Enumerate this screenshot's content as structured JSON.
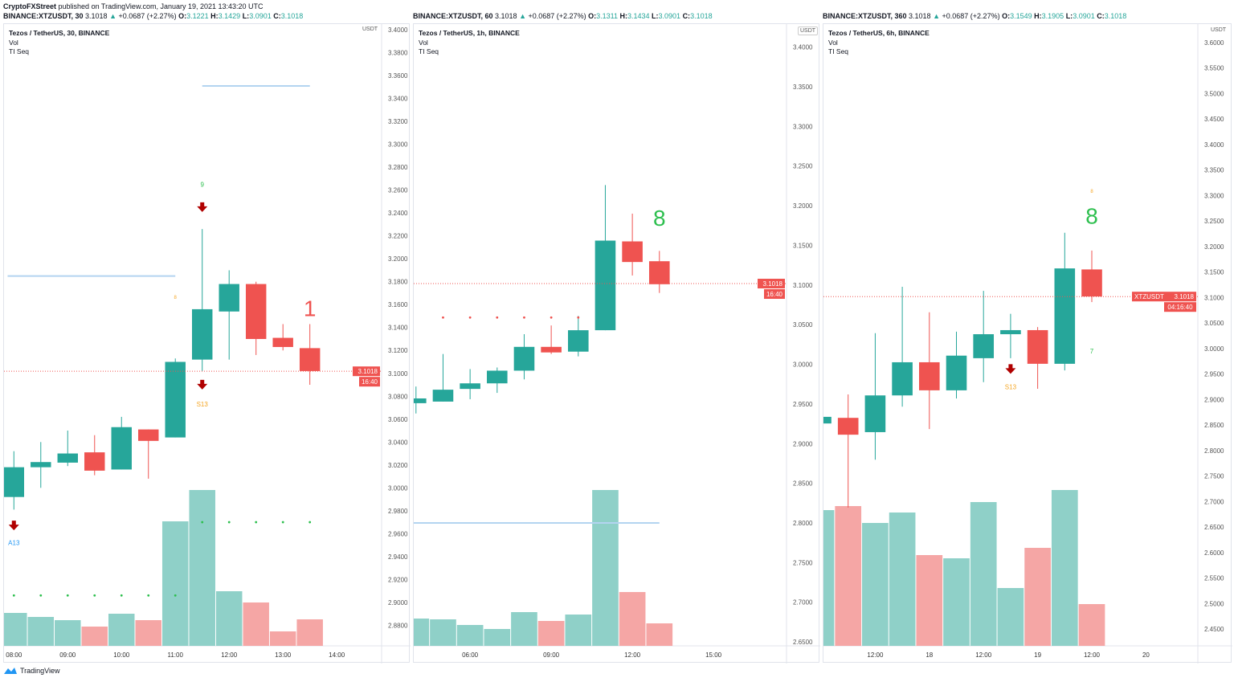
{
  "publisher": {
    "name": "CryptoFXStreet",
    "text": "published on TradingView.com, January 19, 2021 13:43:20 UTC"
  },
  "brand": "TradingView",
  "colors": {
    "up": "#26a69a",
    "down": "#ef5350",
    "vol_up": "#8fd0c8",
    "vol_down": "#f5a6a5",
    "hline": "#b3d4f0",
    "price_label": "#ef5350",
    "seq_green": "#2dbf4e",
    "seq_orange": "#f5a623",
    "arrow": "#b00000",
    "a13": "#2196f3"
  },
  "chart_data": [
    {
      "type": "candlestick",
      "header": {
        "symbol": "BINANCE:XTZUSDT, 30",
        "last": "3.1018",
        "arrow": "▲",
        "change": "+0.0687 (+2.27%)",
        "o": "3.1221",
        "h": "3.1429",
        "l": "3.0901",
        "c": "3.1018"
      },
      "title": "Tezos / TetherUS, 30, BINANCE",
      "indicators": [
        "Vol",
        "TI Seq"
      ],
      "unit": "USDT",
      "ylim": [
        2.862,
        3.405
      ],
      "xlim": [
        "07:49",
        "14:50"
      ],
      "yticks": [
        "3.4000",
        "3.3800",
        "3.3600",
        "3.3400",
        "3.3200",
        "3.3000",
        "3.2800",
        "3.2600",
        "3.2400",
        "3.2200",
        "3.2000",
        "3.1800",
        "3.1600",
        "3.1400",
        "3.1200",
        "3.1000",
        "3.0800",
        "3.0600",
        "3.0400",
        "3.0200",
        "3.0000",
        "2.9800",
        "2.9600",
        "2.9400",
        "2.9200",
        "2.9000",
        "2.8800"
      ],
      "xticks": [
        {
          "t": "08:00",
          "label": "08:00"
        },
        {
          "t": "09:00",
          "label": "09:00"
        },
        {
          "t": "10:00",
          "label": "10:00"
        },
        {
          "t": "11:00",
          "label": "11:00"
        },
        {
          "t": "12:00",
          "label": "12:00"
        },
        {
          "t": "13:00",
          "label": "13:00"
        },
        {
          "t": "14:00",
          "label": "14:00"
        }
      ],
      "candles": [
        {
          "t": "08:00",
          "o": 2.992,
          "h": 3.032,
          "l": 2.981,
          "c": 3.018,
          "v": 41
        },
        {
          "t": "08:30",
          "o": 3.018,
          "h": 3.04,
          "l": 3.0,
          "c": 3.0225,
          "v": 36
        },
        {
          "t": "09:00",
          "o": 3.022,
          "h": 3.05,
          "l": 3.019,
          "c": 3.03,
          "v": 32
        },
        {
          "t": "09:30",
          "o": 3.031,
          "h": 3.046,
          "l": 3.011,
          "c": 3.015,
          "v": 24
        },
        {
          "t": "10:00",
          "o": 3.016,
          "h": 3.062,
          "l": 3.016,
          "c": 3.053,
          "v": 40
        },
        {
          "t": "10:30",
          "o": 3.051,
          "h": 3.051,
          "l": 3.008,
          "c": 3.041,
          "v": 32
        },
        {
          "t": "11:00",
          "o": 3.044,
          "h": 3.113,
          "l": 3.044,
          "c": 3.11,
          "v": 155
        },
        {
          "t": "11:30",
          "o": 3.112,
          "h": 3.226,
          "l": 3.102,
          "c": 3.156,
          "v": 194
        },
        {
          "t": "12:00",
          "o": 3.154,
          "h": 3.19,
          "l": 3.112,
          "c": 3.178,
          "v": 68
        },
        {
          "t": "12:30",
          "o": 3.178,
          "h": 3.18,
          "l": 3.116,
          "c": 3.13,
          "v": 54
        },
        {
          "t": "13:00",
          "o": 3.131,
          "h": 3.143,
          "l": 3.12,
          "c": 3.123,
          "v": 18
        },
        {
          "t": "13:30",
          "o": 3.122,
          "h": 3.143,
          "l": 3.09,
          "c": 3.102,
          "v": 33
        }
      ],
      "last_price": "3.1018",
      "countdown": "16:40",
      "last_value": 3.1018,
      "hlines": [
        {
          "price": 3.185,
          "from": "07:53",
          "to": "11:00"
        },
        {
          "price": 3.351,
          "from": "11:30",
          "to": "13:30"
        }
      ],
      "dots": [
        {
          "price": 2.906,
          "color": "green",
          "times": [
            "08:00",
            "08:30",
            "09:00",
            "09:30",
            "10:00",
            "10:30",
            "11:00"
          ]
        },
        {
          "price": 2.97,
          "color": "green",
          "times": [
            "11:30",
            "12:00",
            "12:30",
            "13:00",
            "13:30"
          ]
        }
      ],
      "annotations": [
        {
          "kind": "text",
          "text": "9",
          "t": "11:30",
          "price": 3.263,
          "color": "seq_green",
          "size": 8
        },
        {
          "kind": "arrow",
          "t": "11:30",
          "price": 3.243
        },
        {
          "kind": "text",
          "text": "8",
          "t": "11:00",
          "price": 3.165,
          "color": "seq_orange",
          "size": 6
        },
        {
          "kind": "arrow",
          "t": "11:30",
          "price": 3.088
        },
        {
          "kind": "text",
          "text": "S13",
          "t": "11:30",
          "price": 3.071,
          "color": "seq_orange",
          "size": 8
        },
        {
          "kind": "text",
          "text": "1",
          "t": "13:30",
          "price": 3.15,
          "color": "down",
          "size": 28
        },
        {
          "kind": "arrow",
          "t": "08:00",
          "price": 2.965
        },
        {
          "kind": "text",
          "text": "A13",
          "t": "08:00",
          "price": 2.95,
          "color": "a13",
          "size": 8
        }
      ]
    },
    {
      "type": "candlestick",
      "header": {
        "symbol": "BINANCE:XTZUSDT, 60",
        "last": "3.1018",
        "arrow": "▲",
        "change": "+0.0687 (+2.27%)",
        "o": "3.1311",
        "h": "3.1434",
        "l": "3.0901",
        "c": "3.1018"
      },
      "title": "Tezos / TetherUS, 1h, BINANCE",
      "indicators": [
        "Vol",
        "TI Seq"
      ],
      "unit": "USDT",
      "ylim": [
        2.645,
        3.429
      ],
      "xlim": [
        "03:55",
        "17:42"
      ],
      "yticks": [
        "3.4000",
        "3.3500",
        "3.3000",
        "3.2500",
        "3.2000",
        "3.1500",
        "3.1000",
        "3.0500",
        "3.0000",
        "2.9500",
        "2.9000",
        "2.8500",
        "2.8000",
        "2.7500",
        "2.7000",
        "2.6500"
      ],
      "xticks": [
        {
          "t": "06:00",
          "label": "06:00"
        },
        {
          "t": "09:00",
          "label": "09:00"
        },
        {
          "t": "12:00",
          "label": "12:00"
        },
        {
          "t": "15:00",
          "label": "15:00"
        }
      ],
      "candles": [
        {
          "t": "04:00",
          "o": 2.951,
          "h": 2.972,
          "l": 2.938,
          "c": 2.957,
          "v": 34
        },
        {
          "t": "05:00",
          "o": 2.953,
          "h": 3.013,
          "l": 2.953,
          "c": 2.968,
          "v": 33
        },
        {
          "t": "06:00",
          "o": 2.969,
          "h": 2.994,
          "l": 2.956,
          "c": 2.976,
          "v": 26
        },
        {
          "t": "07:00",
          "o": 2.976,
          "h": 2.996,
          "l": 2.964,
          "c": 2.992,
          "v": 21
        },
        {
          "t": "08:00",
          "o": 2.992,
          "h": 3.038,
          "l": 2.981,
          "c": 3.022,
          "v": 42
        },
        {
          "t": "09:00",
          "o": 3.022,
          "h": 3.049,
          "l": 3.013,
          "c": 3.015,
          "v": 31
        },
        {
          "t": "10:00",
          "o": 3.016,
          "h": 3.061,
          "l": 3.01,
          "c": 3.043,
          "v": 39
        },
        {
          "t": "11:00",
          "o": 3.043,
          "h": 3.226,
          "l": 3.043,
          "c": 3.156,
          "v": 194
        },
        {
          "t": "12:00",
          "o": 3.155,
          "h": 3.19,
          "l": 3.112,
          "c": 3.129,
          "v": 67
        },
        {
          "t": "13:00",
          "o": 3.13,
          "h": 3.143,
          "l": 3.09,
          "c": 3.101,
          "v": 28
        }
      ],
      "last_price": "3.1018",
      "countdown": "16:40",
      "last_value": 3.1018,
      "hlines": [
        {
          "price": 2.8,
          "from": "03:55",
          "to": "13:00"
        }
      ],
      "dots": [
        {
          "price": 3.059,
          "color": "red",
          "times": [
            "05:00",
            "06:00",
            "07:00",
            "08:00",
            "09:00",
            "10:00"
          ]
        }
      ],
      "annotations": [
        {
          "kind": "text",
          "text": "8",
          "t": "13:00",
          "price": 3.175,
          "color": "seq_green",
          "size": 28
        }
      ]
    },
    {
      "type": "candlestick",
      "header": {
        "symbol": "BINANCE:XTZUSDT, 360",
        "last": "3.1018",
        "arrow": "▲",
        "change": "+0.0687 (+2.27%)",
        "o": "3.1549",
        "h": "3.1905",
        "l": "3.0901",
        "c": "3.1018"
      },
      "title": "Tezos / TetherUS, 6h, BINANCE",
      "indicators": [
        "Vol",
        "TI Seq"
      ],
      "unit": "USDT",
      "ylim": [
        2.417,
        3.636
      ],
      "xlim": [
        "17 00:32",
        "20 11:30"
      ],
      "yticks": [
        "3.6000",
        "3.5500",
        "3.5000",
        "3.4500",
        "3.4000",
        "3.3500",
        "3.3000",
        "3.2500",
        "3.2000",
        "3.1500",
        "3.1000",
        "3.0500",
        "3.0000",
        "2.9500",
        "2.9000",
        "2.8500",
        "2.8000",
        "2.7500",
        "2.7000",
        "2.6500",
        "2.6000",
        "2.5500",
        "2.5000",
        "2.4500"
      ],
      "xticks": [
        {
          "t": "17 12:00",
          "label": "12:00"
        },
        {
          "t": "18 00:00",
          "label": "18"
        },
        {
          "t": "18 12:00",
          "label": "12:00"
        },
        {
          "t": "19 00:00",
          "label": "19"
        },
        {
          "t": "19 12:00",
          "label": "12:00"
        },
        {
          "t": "20 00:00",
          "label": "20"
        },
        {
          "t": "20 12:00",
          "label": "12:00"
        }
      ],
      "candles": [
        {
          "t": "17 00:00",
          "o": 2.853,
          "h": 2.866,
          "l": 2.853,
          "c": 2.866,
          "v": 169
        },
        {
          "t": "17 06:00",
          "o": 2.864,
          "h": 2.91,
          "l": 2.688,
          "c": 2.831,
          "v": 174
        },
        {
          "t": "17 12:00",
          "o": 2.836,
          "h": 3.03,
          "l": 2.782,
          "c": 2.908,
          "v": 153
        },
        {
          "t": "17 18:00",
          "o": 2.908,
          "h": 3.121,
          "l": 2.886,
          "c": 2.973,
          "v": 166
        },
        {
          "t": "18 00:00",
          "o": 2.973,
          "h": 3.071,
          "l": 2.842,
          "c": 2.918,
          "v": 113
        },
        {
          "t": "18 06:00",
          "o": 2.918,
          "h": 3.033,
          "l": 2.902,
          "c": 2.986,
          "v": 109
        },
        {
          "t": "18 12:00",
          "o": 2.981,
          "h": 3.113,
          "l": 2.934,
          "c": 3.028,
          "v": 179
        },
        {
          "t": "18 18:00",
          "o": 3.028,
          "h": 3.068,
          "l": 2.981,
          "c": 3.036,
          "v": 72
        },
        {
          "t": "19 00:00",
          "o": 3.036,
          "h": 3.042,
          "l": 2.921,
          "c": 2.97,
          "v": 122
        },
        {
          "t": "19 06:00",
          "o": 2.97,
          "h": 3.227,
          "l": 2.957,
          "c": 3.157,
          "v": 194
        },
        {
          "t": "19 12:00",
          "o": 3.155,
          "h": 3.192,
          "l": 3.091,
          "c": 3.102,
          "v": 52
        }
      ],
      "last_price": "3.1018",
      "price_tag": "XTZUSDT",
      "countdown": "04:16:40",
      "last_value": 3.1018,
      "hlines": [],
      "dots": [],
      "annotations": [
        {
          "kind": "text",
          "text": "8",
          "t": "19 12:00",
          "price": 3.305,
          "color": "seq_orange",
          "size": 6
        },
        {
          "kind": "text",
          "text": "8",
          "t": "19 12:00",
          "price": 3.245,
          "color": "seq_green",
          "size": 28
        },
        {
          "kind": "text",
          "text": "7",
          "t": "19 12:00",
          "price": 2.99,
          "color": "seq_green",
          "size": 8
        },
        {
          "kind": "arrow",
          "t": "18 18:00",
          "price": 2.955
        },
        {
          "kind": "text",
          "text": "S13",
          "t": "18 18:00",
          "price": 2.92,
          "color": "seq_orange",
          "size": 8
        }
      ]
    }
  ]
}
